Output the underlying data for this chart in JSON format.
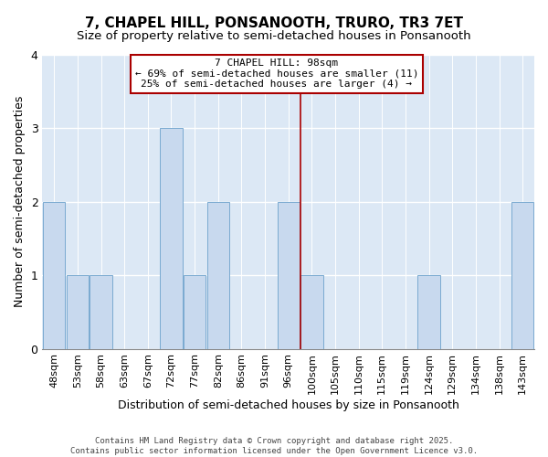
{
  "title": "7, CHAPEL HILL, PONSANOOTH, TRURO, TR3 7ET",
  "subtitle": "Size of property relative to semi-detached houses in Ponsanooth",
  "xlabel": "Distribution of semi-detached houses by size in Ponsanooth",
  "ylabel": "Number of semi-detached properties",
  "bins": [
    "48sqm",
    "53sqm",
    "58sqm",
    "63sqm",
    "67sqm",
    "72sqm",
    "77sqm",
    "82sqm",
    "86sqm",
    "91sqm",
    "96sqm",
    "100sqm",
    "105sqm",
    "110sqm",
    "115sqm",
    "119sqm",
    "124sqm",
    "129sqm",
    "134sqm",
    "138sqm",
    "143sqm"
  ],
  "counts": [
    2,
    1,
    1,
    0,
    0,
    3,
    1,
    2,
    0,
    0,
    2,
    1,
    0,
    0,
    0,
    0,
    1,
    0,
    0,
    0,
    2
  ],
  "bar_color": "#c8d9ee",
  "bar_edge_color": "#7aaad0",
  "vline_color": "#aa0000",
  "vline_x": 10.5,
  "annotation_title": "7 CHAPEL HILL: 98sqm",
  "annotation_line1": "← 69% of semi-detached houses are smaller (11)",
  "annotation_line2": "25% of semi-detached houses are larger (4) →",
  "ylim": [
    0,
    4
  ],
  "yticks": [
    0,
    1,
    2,
    3,
    4
  ],
  "footer1": "Contains HM Land Registry data © Crown copyright and database right 2025.",
  "footer2": "Contains public sector information licensed under the Open Government Licence v3.0.",
  "fig_bg_color": "#ffffff",
  "plot_bg_color": "#dce8f5",
  "grid_color": "#ffffff",
  "annotation_box_color": "#ffffff",
  "annotation_border_color": "#aa0000",
  "title_fontsize": 11,
  "subtitle_fontsize": 9.5,
  "axis_label_fontsize": 9,
  "tick_fontsize": 8,
  "annotation_fontsize": 8,
  "footer_fontsize": 6.5
}
